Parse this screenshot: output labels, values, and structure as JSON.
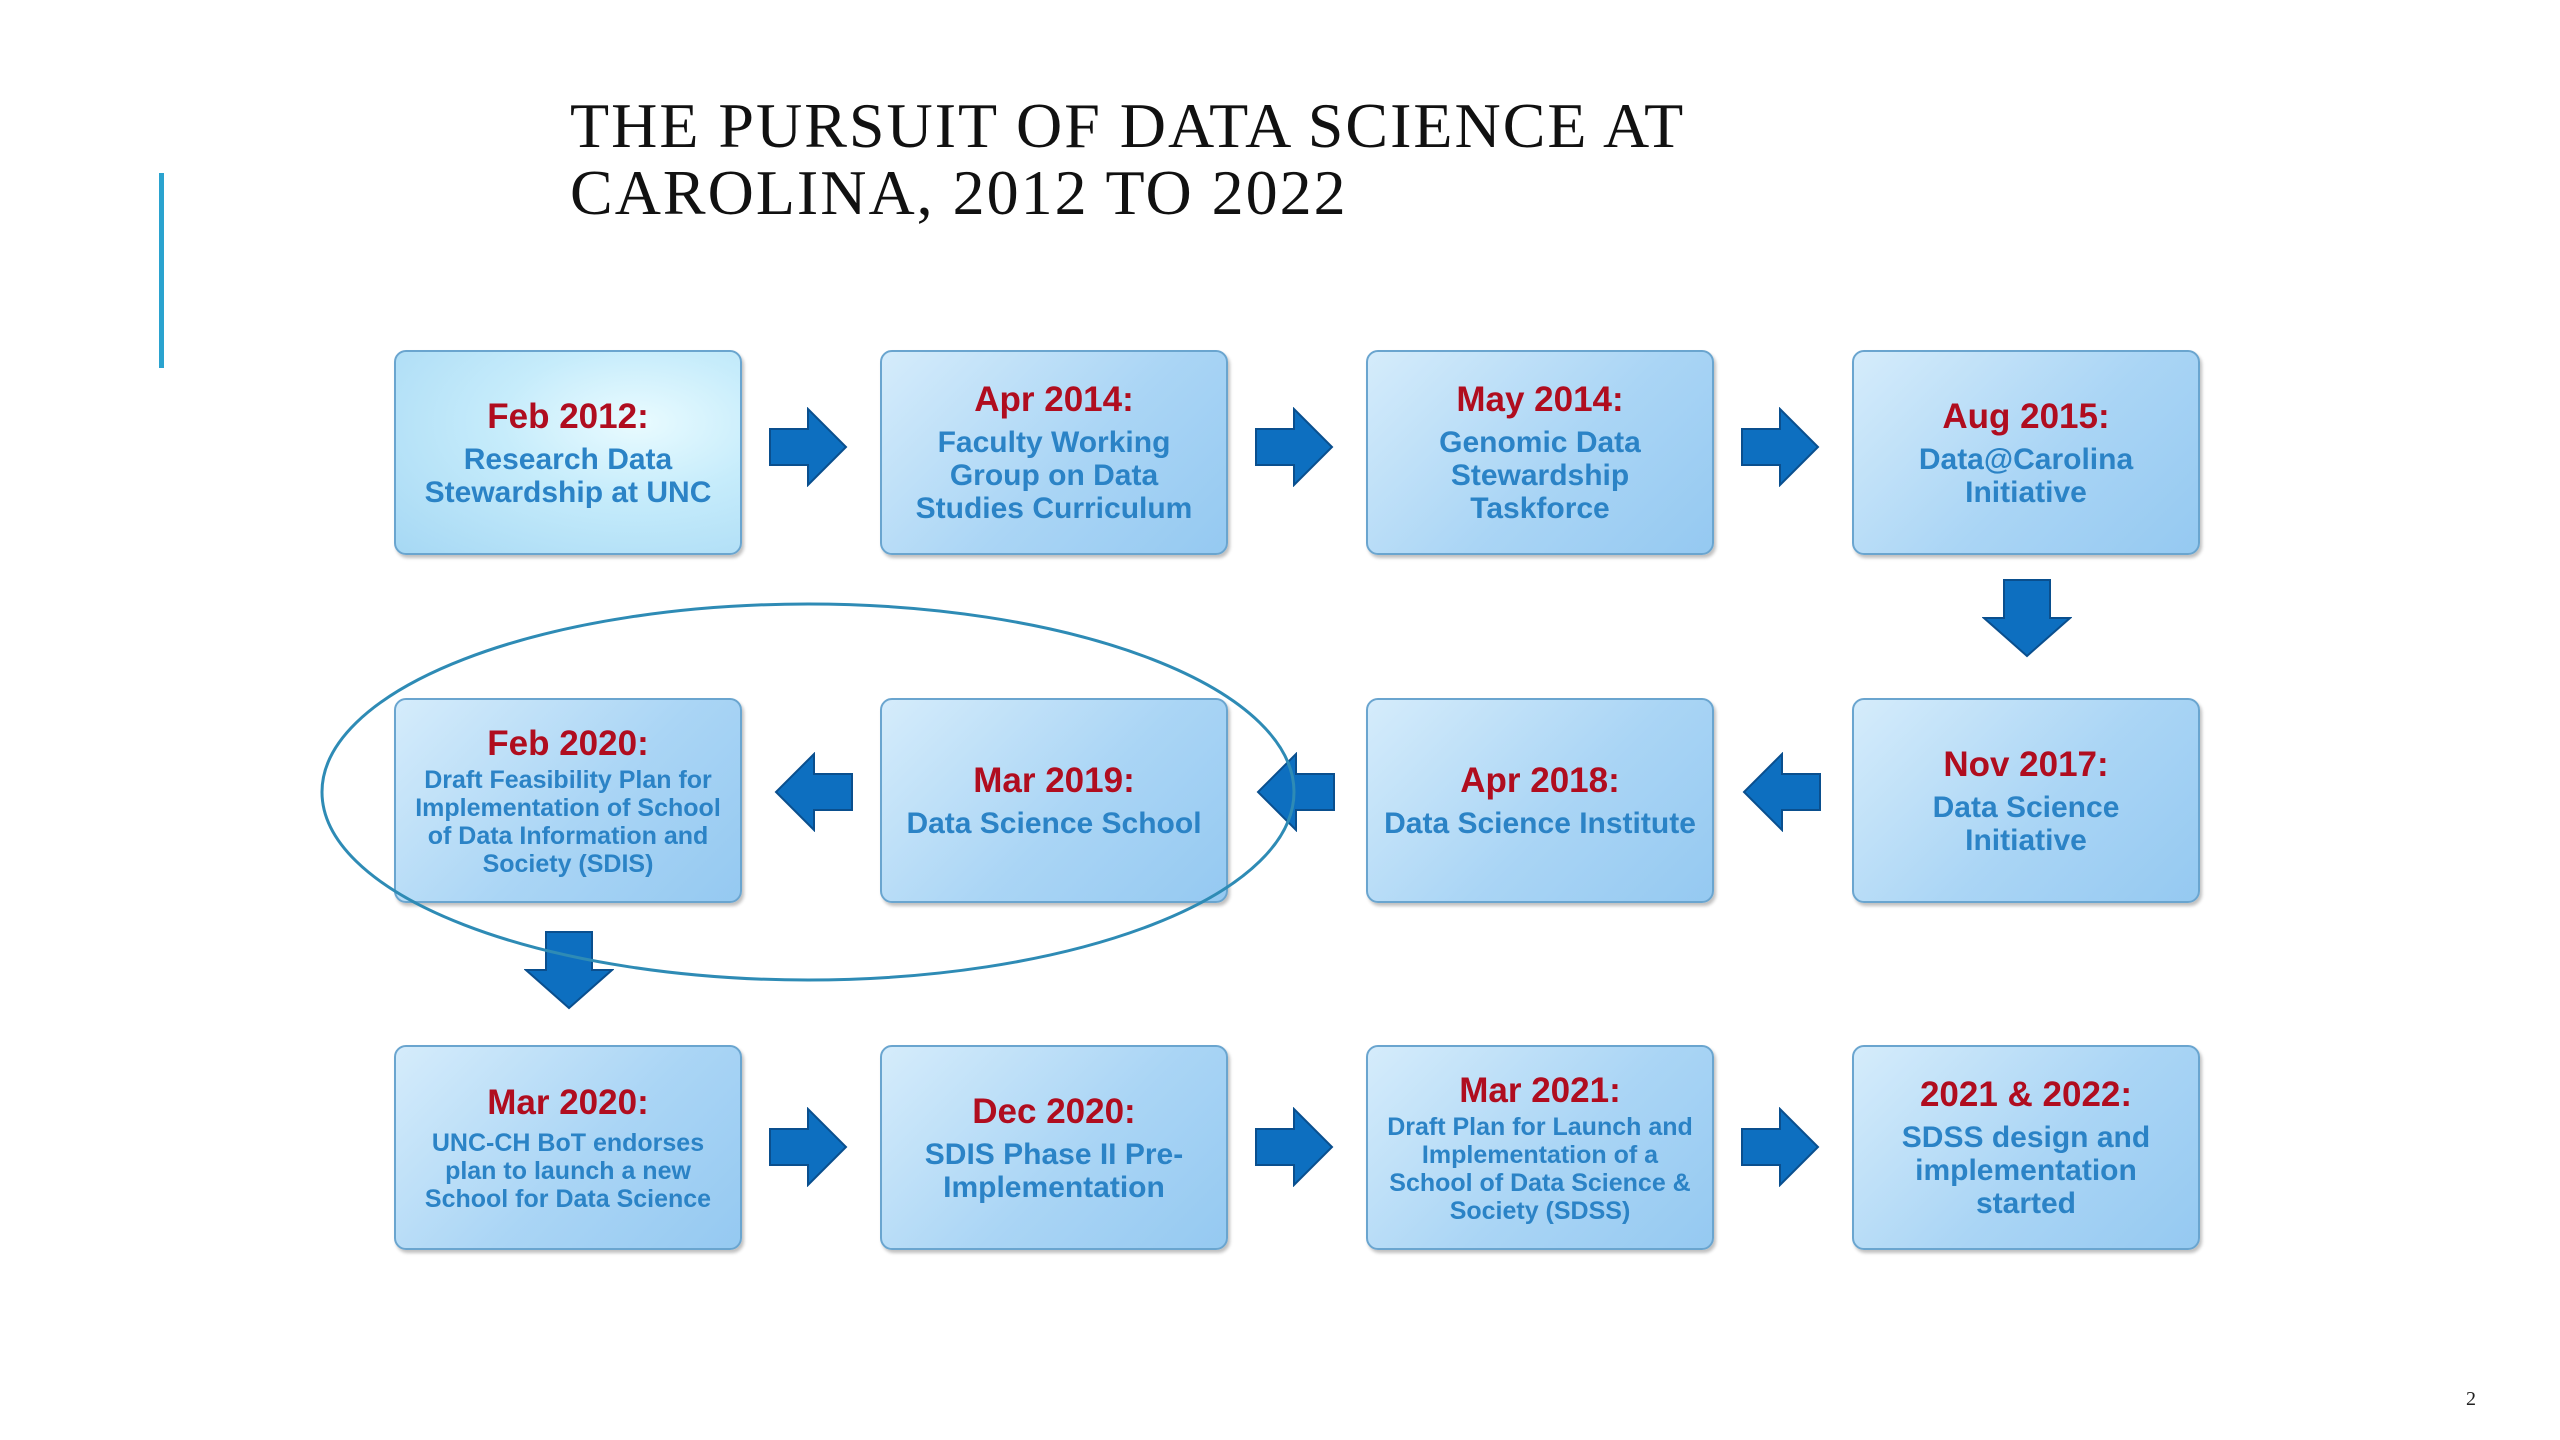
{
  "slide": {
    "title_line1": "THE PURSUIT OF DATA SCIENCE AT",
    "title_line2": "CAROLINA, 2012 TO 2022",
    "page_number": "2"
  },
  "colors": {
    "date": "#b00d1f",
    "description": "#2b83c6",
    "arrow": "#0d6fc0",
    "accent": "#2aa3cf"
  },
  "milestones": [
    {
      "date": "Feb 2012:",
      "text": "Research Data Stewardship at UNC"
    },
    {
      "date": "Apr 2014:",
      "text": "Faculty Working Group on Data Studies Curriculum"
    },
    {
      "date": "May 2014:",
      "text": "Genomic Data Stewardship Taskforce"
    },
    {
      "date": "Aug 2015:",
      "text": "Data@Carolina Initiative"
    },
    {
      "date": "Nov 2017:",
      "text": "Data Science Initiative"
    },
    {
      "date": "Apr 2018:",
      "text": "Data Science Institute"
    },
    {
      "date": "Mar 2019:",
      "text": "Data Science School"
    },
    {
      "date": "Feb 2020:",
      "text": "Draft Feasibility Plan for Implementation of School of Data Information and Society (SDIS)"
    },
    {
      "date": "Mar 2020:",
      "text": "UNC-CH BoT endorses plan to launch a new School for Data Science"
    },
    {
      "date": "Dec 2020:",
      "text": "SDIS Phase II Pre-Implementation"
    },
    {
      "date": "Mar 2021:",
      "text": "Draft Plan for Launch and Implementation of a School of Data Science & Society (SDSS)"
    },
    {
      "date": "2021 & 2022:",
      "text": "SDSS design and implementation started"
    }
  ]
}
